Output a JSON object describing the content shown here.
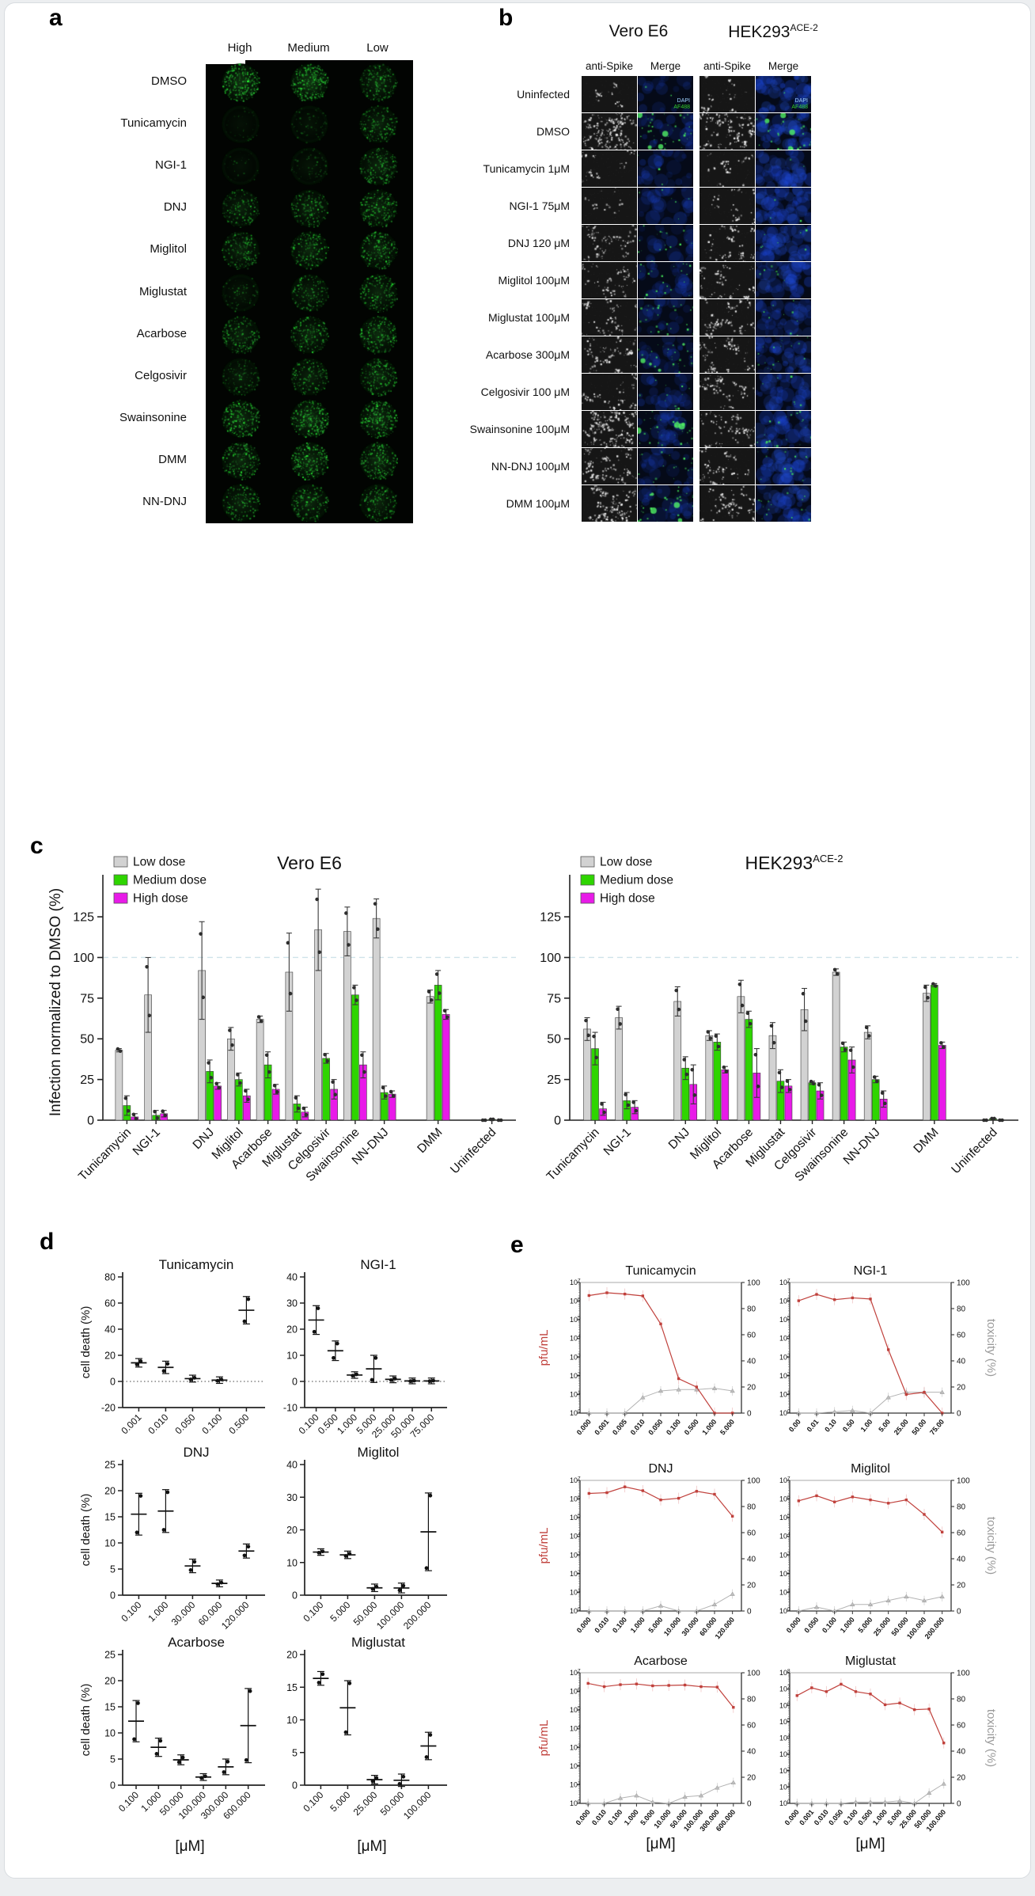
{
  "colors": {
    "low_dose": "#d2d2d2",
    "medium_dose": "#2ed500",
    "high_dose": "#e81ae8",
    "bar_point": "#2e2e2e",
    "pfu_line": "#c0413c",
    "toxicity_line": "#b3b3b3",
    "ref_line": "#cfe3ea",
    "dapi_text": "#9fd2ff",
    "af488_text": "#34d12e"
  },
  "panel_a": {
    "label": "a",
    "col_headers": [
      "High",
      "Medium",
      "Low"
    ],
    "rows": [
      {
        "label": "DMSO",
        "intensity": [
          0.8,
          0.9,
          0.55
        ]
      },
      {
        "label": "Tunicamycin",
        "intensity": [
          0.05,
          0.12,
          0.5
        ]
      },
      {
        "label": "NGI-1",
        "intensity": [
          0.04,
          0.15,
          0.55
        ]
      },
      {
        "label": "DNJ",
        "intensity": [
          0.45,
          0.5,
          0.6
        ]
      },
      {
        "label": "Miglitol",
        "intensity": [
          0.5,
          0.55,
          0.6
        ]
      },
      {
        "label": "Miglustat",
        "intensity": [
          0.2,
          0.45,
          0.55
        ]
      },
      {
        "label": "Acarbose",
        "intensity": [
          0.5,
          0.55,
          0.65
        ]
      },
      {
        "label": "Celgosivir",
        "intensity": [
          0.35,
          0.5,
          0.6
        ]
      },
      {
        "label": "Swainsonine",
        "intensity": [
          0.7,
          0.85,
          0.75
        ]
      },
      {
        "label": "DMM",
        "intensity": [
          0.6,
          0.7,
          0.65
        ]
      },
      {
        "label": "NN-DNJ",
        "intensity": [
          0.5,
          0.55,
          0.5
        ]
      }
    ]
  },
  "panel_b": {
    "label": "b",
    "groups": [
      {
        "name": "Vero E6",
        "sup": ""
      },
      {
        "name": "HEK293",
        "sup": "ACE-2"
      }
    ],
    "col_headers": [
      "anti-Spike",
      "Merge"
    ],
    "merge_annotations": [
      "DAPI",
      "AF488"
    ],
    "rows": [
      {
        "label": "Uninfected",
        "annotated": true,
        "vero": {
          "spike": 0.07,
          "green": 0.04,
          "blue": 0.35
        },
        "hek": {
          "spike": 0.1,
          "green": 0.03,
          "blue": 0.9
        }
      },
      {
        "label": "DMSO",
        "vero": {
          "spike": 0.9,
          "green": 0.65,
          "blue": 0.5
        },
        "hek": {
          "spike": 0.55,
          "green": 0.5,
          "blue": 0.85
        }
      },
      {
        "label": "Tunicamycin 1μM",
        "vero": {
          "spike": 0.07,
          "green": 0.06,
          "blue": 0.5
        },
        "hek": {
          "spike": 0.12,
          "green": 0.05,
          "blue": 0.8
        }
      },
      {
        "label": "NGI-1 75μM",
        "vero": {
          "spike": 0.07,
          "green": 0.1,
          "blue": 0.55
        },
        "hek": {
          "spike": 0.1,
          "green": 0.06,
          "blue": 0.85
        }
      },
      {
        "label": "DNJ 120 μM",
        "vero": {
          "spike": 0.3,
          "green": 0.3,
          "blue": 0.5
        },
        "hek": {
          "spike": 0.25,
          "green": 0.12,
          "blue": 0.8
        }
      },
      {
        "label": "Miglitol 100μM",
        "vero": {
          "spike": 0.28,
          "green": 0.45,
          "blue": 0.55
        },
        "hek": {
          "spike": 0.3,
          "green": 0.15,
          "blue": 0.75
        }
      },
      {
        "label": "Miglustat 100μM",
        "vero": {
          "spike": 0.28,
          "green": 0.45,
          "blue": 0.45
        },
        "hek": {
          "spike": 0.35,
          "green": 0.2,
          "blue": 0.7
        }
      },
      {
        "label": "Acarbose 300μM",
        "vero": {
          "spike": 0.4,
          "green": 0.5,
          "blue": 0.5
        },
        "hek": {
          "spike": 0.4,
          "green": 0.3,
          "blue": 0.75
        }
      },
      {
        "label": "Celgosivir 100 μM",
        "vero": {
          "spike": 0.15,
          "green": 0.2,
          "blue": 0.5
        },
        "hek": {
          "spike": 0.3,
          "green": 0.1,
          "blue": 0.7
        }
      },
      {
        "label": "Swainsonine 100μM",
        "vero": {
          "spike": 0.85,
          "green": 0.55,
          "blue": 0.55
        },
        "hek": {
          "spike": 0.35,
          "green": 0.4,
          "blue": 0.75
        }
      },
      {
        "label": "NN-DNJ 100μM",
        "vero": {
          "spike": 0.5,
          "green": 0.35,
          "blue": 0.5
        },
        "hek": {
          "spike": 0.3,
          "green": 0.25,
          "blue": 0.8
        }
      },
      {
        "label": "DMM 100μM",
        "vero": {
          "spike": 0.6,
          "green": 0.55,
          "blue": 0.5
        },
        "hek": {
          "spike": 0.35,
          "green": 0.3,
          "blue": 0.75
        }
      }
    ]
  },
  "panel_c": {
    "label": "c"
  },
  "panel_d": {
    "label": "d"
  },
  "panel_e": {
    "label": "e"
  },
  "chart_data": [
    {
      "id": "vero-bars",
      "type": "bar",
      "title": "Vero E6",
      "title_sup": "",
      "ylabel": "Infection normalized to DMSO (%)",
      "categories": [
        "Tunicamycin",
        "NGI-1",
        "DNJ",
        "Miglitol",
        "Acarbose",
        "Miglustat",
        "Celgosivir",
        "Swainsonine",
        "NN-DNJ",
        "DMM",
        "Uninfected"
      ],
      "series": [
        {
          "name": "Low dose",
          "values": [
            43,
            77,
            92,
            50,
            62,
            91,
            117,
            116,
            124,
            76,
            0
          ],
          "errors": [
            1,
            23,
            30,
            7,
            2,
            24,
            25,
            15,
            12,
            4,
            0
          ]
        },
        {
          "name": "Medium dose",
          "values": [
            9,
            3,
            30,
            25,
            34,
            10,
            38,
            77,
            17,
            83,
            0.5
          ],
          "errors": [
            6,
            3,
            7,
            4,
            8,
            5,
            3,
            6,
            4,
            9,
            0
          ]
        },
        {
          "name": "High dose",
          "values": [
            2,
            4,
            21,
            15,
            19,
            5,
            19,
            34,
            16,
            65,
            0
          ],
          "errors": [
            2,
            2,
            2,
            4,
            3,
            3,
            6,
            8,
            2,
            3,
            0
          ]
        }
      ],
      "yticks": [
        0,
        25,
        50,
        75,
        100,
        125
      ],
      "ylim": [
        0,
        145
      ],
      "ref_line": 100,
      "legend_position": "top-left",
      "group_gap_after": [
        1,
        8,
        9
      ]
    },
    {
      "id": "hek-bars",
      "type": "bar",
      "title": "HEK293",
      "title_sup": "ACE-2",
      "ylabel": "",
      "categories": [
        "Tunicamycin",
        "NGI-1",
        "DNJ",
        "Miglitol",
        "Acarbose",
        "Miglustat",
        "Celgosivir",
        "Swainsonine",
        "NN-DNJ",
        "DMM",
        "Uninfected"
      ],
      "series": [
        {
          "name": "Low dose",
          "values": [
            56,
            63,
            73,
            52,
            76,
            52,
            68,
            91,
            54,
            78,
            0
          ],
          "errors": [
            7,
            7,
            9,
            3,
            10,
            8,
            13,
            2,
            4,
            5,
            0
          ]
        },
        {
          "name": "Medium dose",
          "values": [
            44,
            12,
            32,
            48,
            62,
            24,
            23,
            45,
            25,
            83,
            1
          ],
          "errors": [
            10,
            5,
            7,
            5,
            5,
            7,
            1,
            3,
            2,
            1,
            0
          ]
        },
        {
          "name": "High dose",
          "values": [
            7,
            8,
            22,
            31,
            29,
            21,
            18,
            37,
            13,
            46,
            0
          ],
          "errors": [
            4,
            4,
            12,
            2,
            15,
            4,
            5,
            8,
            5,
            2,
            0
          ]
        }
      ],
      "yticks": [
        0,
        25,
        50,
        75,
        100,
        125
      ],
      "ylim": [
        0,
        145
      ],
      "ref_line": 100,
      "legend_position": "top-left",
      "group_gap_after": [
        1,
        8,
        9
      ]
    },
    {
      "id": "d-tunicamycin",
      "type": "scatter",
      "title": "Tunicamycin",
      "ylabel": "cell death (%)",
      "categories": [
        "0.001",
        "0.010",
        "0.050",
        "0.100",
        "0.500"
      ],
      "points": [
        [
          13,
          15.5
        ],
        [
          8,
          13.5
        ],
        [
          1.5,
          2.8
        ],
        [
          0.5,
          1.5
        ],
        [
          46,
          63
        ]
      ],
      "yticks": [
        -20,
        0,
        20,
        40,
        60,
        80
      ],
      "ylim": [
        -20,
        80
      ],
      "zero_line": true
    },
    {
      "id": "d-ngi1",
      "type": "scatter",
      "title": "NGI-1",
      "ylabel": "",
      "categories": [
        "0.100",
        "0.500",
        "1.000",
        "5.000",
        "25.000",
        "50.000",
        "75.000"
      ],
      "points": [
        [
          19,
          28
        ],
        [
          9,
          14.5
        ],
        [
          2.2,
          2.7
        ],
        [
          0.6,
          9
        ],
        [
          0.5,
          1.1
        ],
        [
          0.1,
          0.3
        ],
        [
          0.1,
          0.3
        ]
      ],
      "yticks": [
        -10,
        0,
        10,
        20,
        30,
        40
      ],
      "ylim": [
        -10,
        40
      ],
      "zero_line": true
    },
    {
      "id": "d-dnj",
      "type": "scatter",
      "title": "DNJ",
      "ylabel": "cell death (%)",
      "categories": [
        "0.100",
        "1.000",
        "30.000",
        "60.000",
        "120.000"
      ],
      "points": [
        [
          12,
          19
        ],
        [
          12.5,
          19.7
        ],
        [
          4.8,
          6.4
        ],
        [
          2.1,
          2.4
        ],
        [
          7.6,
          9.3
        ]
      ],
      "yticks": [
        0,
        5,
        10,
        15,
        20,
        25
      ],
      "ylim": [
        0,
        25
      ],
      "zero_line": false
    },
    {
      "id": "d-miglitol",
      "type": "scatter",
      "title": "Miglitol",
      "ylabel": "",
      "categories": [
        "0.100",
        "5.000",
        "50.000",
        "100.000",
        "200.000"
      ],
      "points": [
        [
          13,
          13.4
        ],
        [
          12,
          12.7
        ],
        [
          1.9,
          2.6
        ],
        [
          1.5,
          2.9
        ],
        [
          8.3,
          30.5
        ]
      ],
      "yticks": [
        0,
        10,
        20,
        30,
        40
      ],
      "ylim": [
        0,
        40
      ],
      "zero_line": false
    },
    {
      "id": "d-acarbose",
      "type": "scatter",
      "title": "Acarbose",
      "ylabel": "cell death (%)",
      "xlabel": "[μM]",
      "categories": [
        "0.100",
        "1.000",
        "50.000",
        "100.000",
        "300.000",
        "600.000"
      ],
      "points": [
        [
          8.8,
          15.7
        ],
        [
          6,
          8.5
        ],
        [
          4.4,
          5.3
        ],
        [
          1.4,
          1.7
        ],
        [
          2.5,
          4.5
        ],
        [
          4.8,
          18
        ]
      ],
      "yticks": [
        0,
        5,
        10,
        15,
        20,
        25
      ],
      "ylim": [
        0,
        25
      ],
      "zero_line": false
    },
    {
      "id": "d-miglustat",
      "type": "scatter",
      "title": "Miglustat",
      "ylabel": "",
      "xlabel": "[μM]",
      "categories": [
        "0.100",
        "5.000",
        "25.000",
        "50.000",
        "100.000"
      ],
      "points": [
        [
          15.7,
          17
        ],
        [
          8.1,
          15.6
        ],
        [
          0.6,
          1.1
        ],
        [
          0.2,
          1.3
        ],
        [
          4.3,
          7.7
        ]
      ],
      "yticks": [
        0,
        5,
        10,
        15,
        20
      ],
      "ylim": [
        0,
        20
      ],
      "zero_line": false
    },
    {
      "id": "e-tunicamycin",
      "type": "line-dual",
      "title": "Tunicamycin",
      "ylabel_left": "pfu/mL",
      "ylabel_right": "",
      "categories": [
        "0.000",
        "0.001",
        "0.005",
        "0.010",
        "0.050",
        "0.100",
        "0.500",
        "1.000",
        "5.000"
      ],
      "pfu": [
        2000000.0,
        2800000.0,
        2400000.0,
        1900000.0,
        60000.0,
        70,
        25,
        1,
        1
      ],
      "toxicity": [
        0,
        0,
        0,
        12,
        17,
        18,
        18,
        19,
        17
      ],
      "decades": 7
    },
    {
      "id": "e-ngi1",
      "type": "line-dual",
      "title": "NGI-1",
      "ylabel_left": "",
      "ylabel_right": "toxicity (%)",
      "categories": [
        "0.00",
        "0.01",
        "0.10",
        "0.50",
        "1.00",
        "5.00",
        "25.00",
        "50.00",
        "75.00"
      ],
      "pfu": [
        1050000.0,
        2300000.0,
        1200000.0,
        1500000.0,
        1300000.0,
        2500.0,
        10,
        13,
        1
      ],
      "toxicity": [
        0,
        0,
        1,
        2,
        0,
        12,
        16,
        16,
        16
      ],
      "decades": 7
    },
    {
      "id": "e-dnj",
      "type": "line-dual",
      "title": "DNJ",
      "ylabel_left": "pfu/mL",
      "ylabel_right": "",
      "categories": [
        "0.000",
        "0.010",
        "0.100",
        "1.000",
        "5.000",
        "10.000",
        "30.000",
        "60.000",
        "120.000"
      ],
      "pfu": [
        2000000.0,
        2200000.0,
        4500000.0,
        2800000.0,
        900000.0,
        1100000.0,
        2600000.0,
        1800000.0,
        120000.0
      ],
      "toxicity": [
        0,
        0,
        0,
        0,
        4,
        0,
        0,
        5,
        13
      ],
      "decades": 7
    },
    {
      "id": "e-miglitol",
      "type": "line-dual",
      "title": "Miglitol",
      "ylabel_left": "",
      "ylabel_right": "toxicity (%)",
      "categories": [
        "0.000",
        "0.050",
        "0.100",
        "1.000",
        "5.000",
        "25.000",
        "50.000",
        "100.000",
        "200.000"
      ],
      "pfu": [
        800000.0,
        1500000.0,
        700000.0,
        1300000.0,
        900000.0,
        600000.0,
        900000.0,
        150000.0,
        17000.0
      ],
      "toxicity": [
        0,
        3,
        0,
        5,
        5,
        8,
        11,
        8,
        11
      ],
      "decades": 7
    },
    {
      "id": "e-acarbose",
      "type": "line-dual",
      "title": "Acarbose",
      "ylabel_left": "pfu/mL",
      "ylabel_right": "",
      "xlabel": "[μM]",
      "categories": [
        "0.000",
        "0.010",
        "0.100",
        "1.000",
        "5.000",
        "10.000",
        "50.000",
        "100.000",
        "300.000",
        "600.000"
      ],
      "pfu": [
        2700000.0,
        1800000.0,
        2300000.0,
        2500000.0,
        2000000.0,
        2100000.0,
        2200000.0,
        1800000.0,
        1700000.0,
        140000.0
      ],
      "toxicity": [
        0,
        0,
        4,
        6,
        1,
        0,
        5,
        6,
        12,
        16
      ],
      "decades": 7
    },
    {
      "id": "e-miglustat",
      "type": "line-dual",
      "title": "Miglustat",
      "ylabel_left": "",
      "ylabel_right": "toxicity (%)",
      "xlabel": "[μM]",
      "categories": [
        "0.000",
        "0.001",
        "0.010",
        "0.050",
        "0.100",
        "0.500",
        "1.000",
        "5.000",
        "25.000",
        "50.000",
        "100.000"
      ],
      "pfu": [
        4000000.0,
        12000000.0,
        7000000.0,
        20000000.0,
        7000000.0,
        5000000.0,
        1100000.0,
        1400000.0,
        550000.0,
        600000.0,
        5000.0
      ],
      "toxicity": [
        0,
        0,
        0,
        0,
        1,
        1,
        1,
        2,
        0,
        8,
        15
      ],
      "decades": 8
    }
  ]
}
